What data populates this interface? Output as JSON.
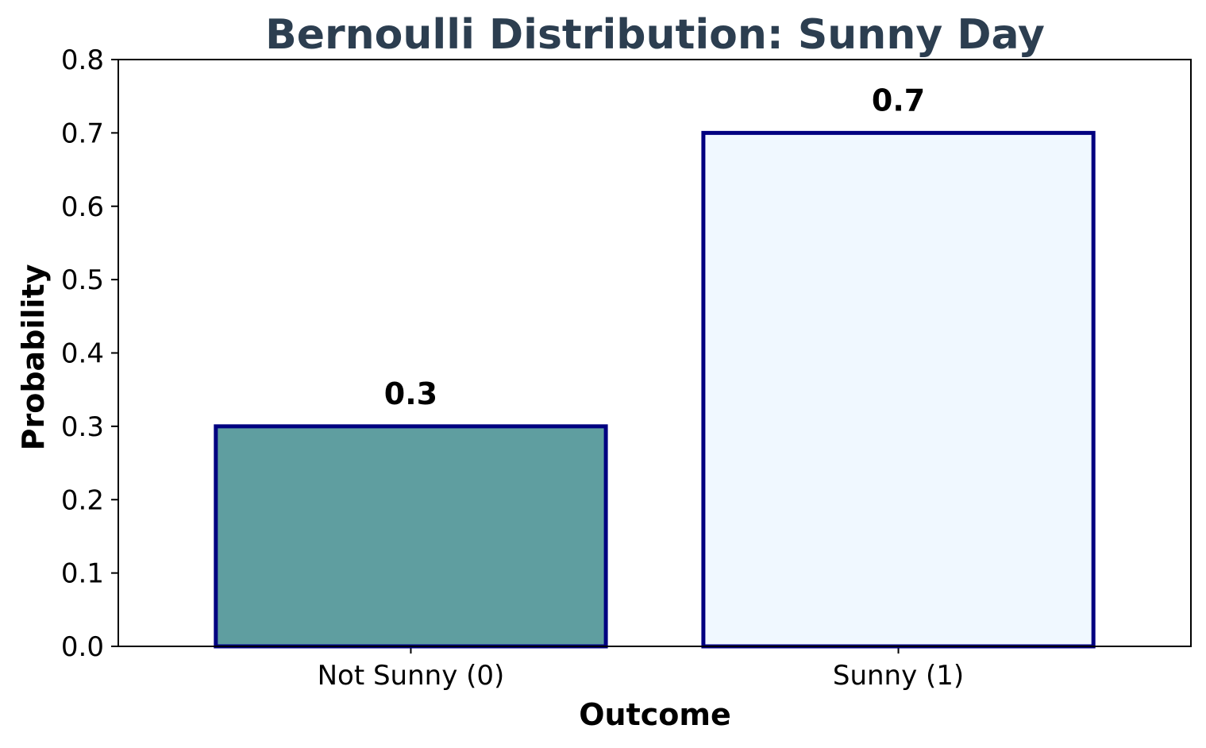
{
  "chart_data": {
    "type": "bar",
    "title": "Bernoulli Distribution: Sunny Day",
    "xlabel": "Outcome",
    "ylabel": "Probability",
    "categories": [
      "Not Sunny (0)",
      "Sunny (1)"
    ],
    "values": [
      0.3,
      0.7
    ],
    "data_labels": [
      "0.3",
      "0.7"
    ],
    "ylim": [
      0,
      0.8
    ],
    "yticks": [
      "0.0",
      "0.1",
      "0.2",
      "0.3",
      "0.4",
      "0.5",
      "0.6",
      "0.7",
      "0.8"
    ],
    "bar_colors": [
      "#5f9ea0",
      "#f0f8ff"
    ],
    "bar_edge_color": "#000080",
    "title_color": "#2c3e50",
    "grid": false,
    "legend": false
  }
}
